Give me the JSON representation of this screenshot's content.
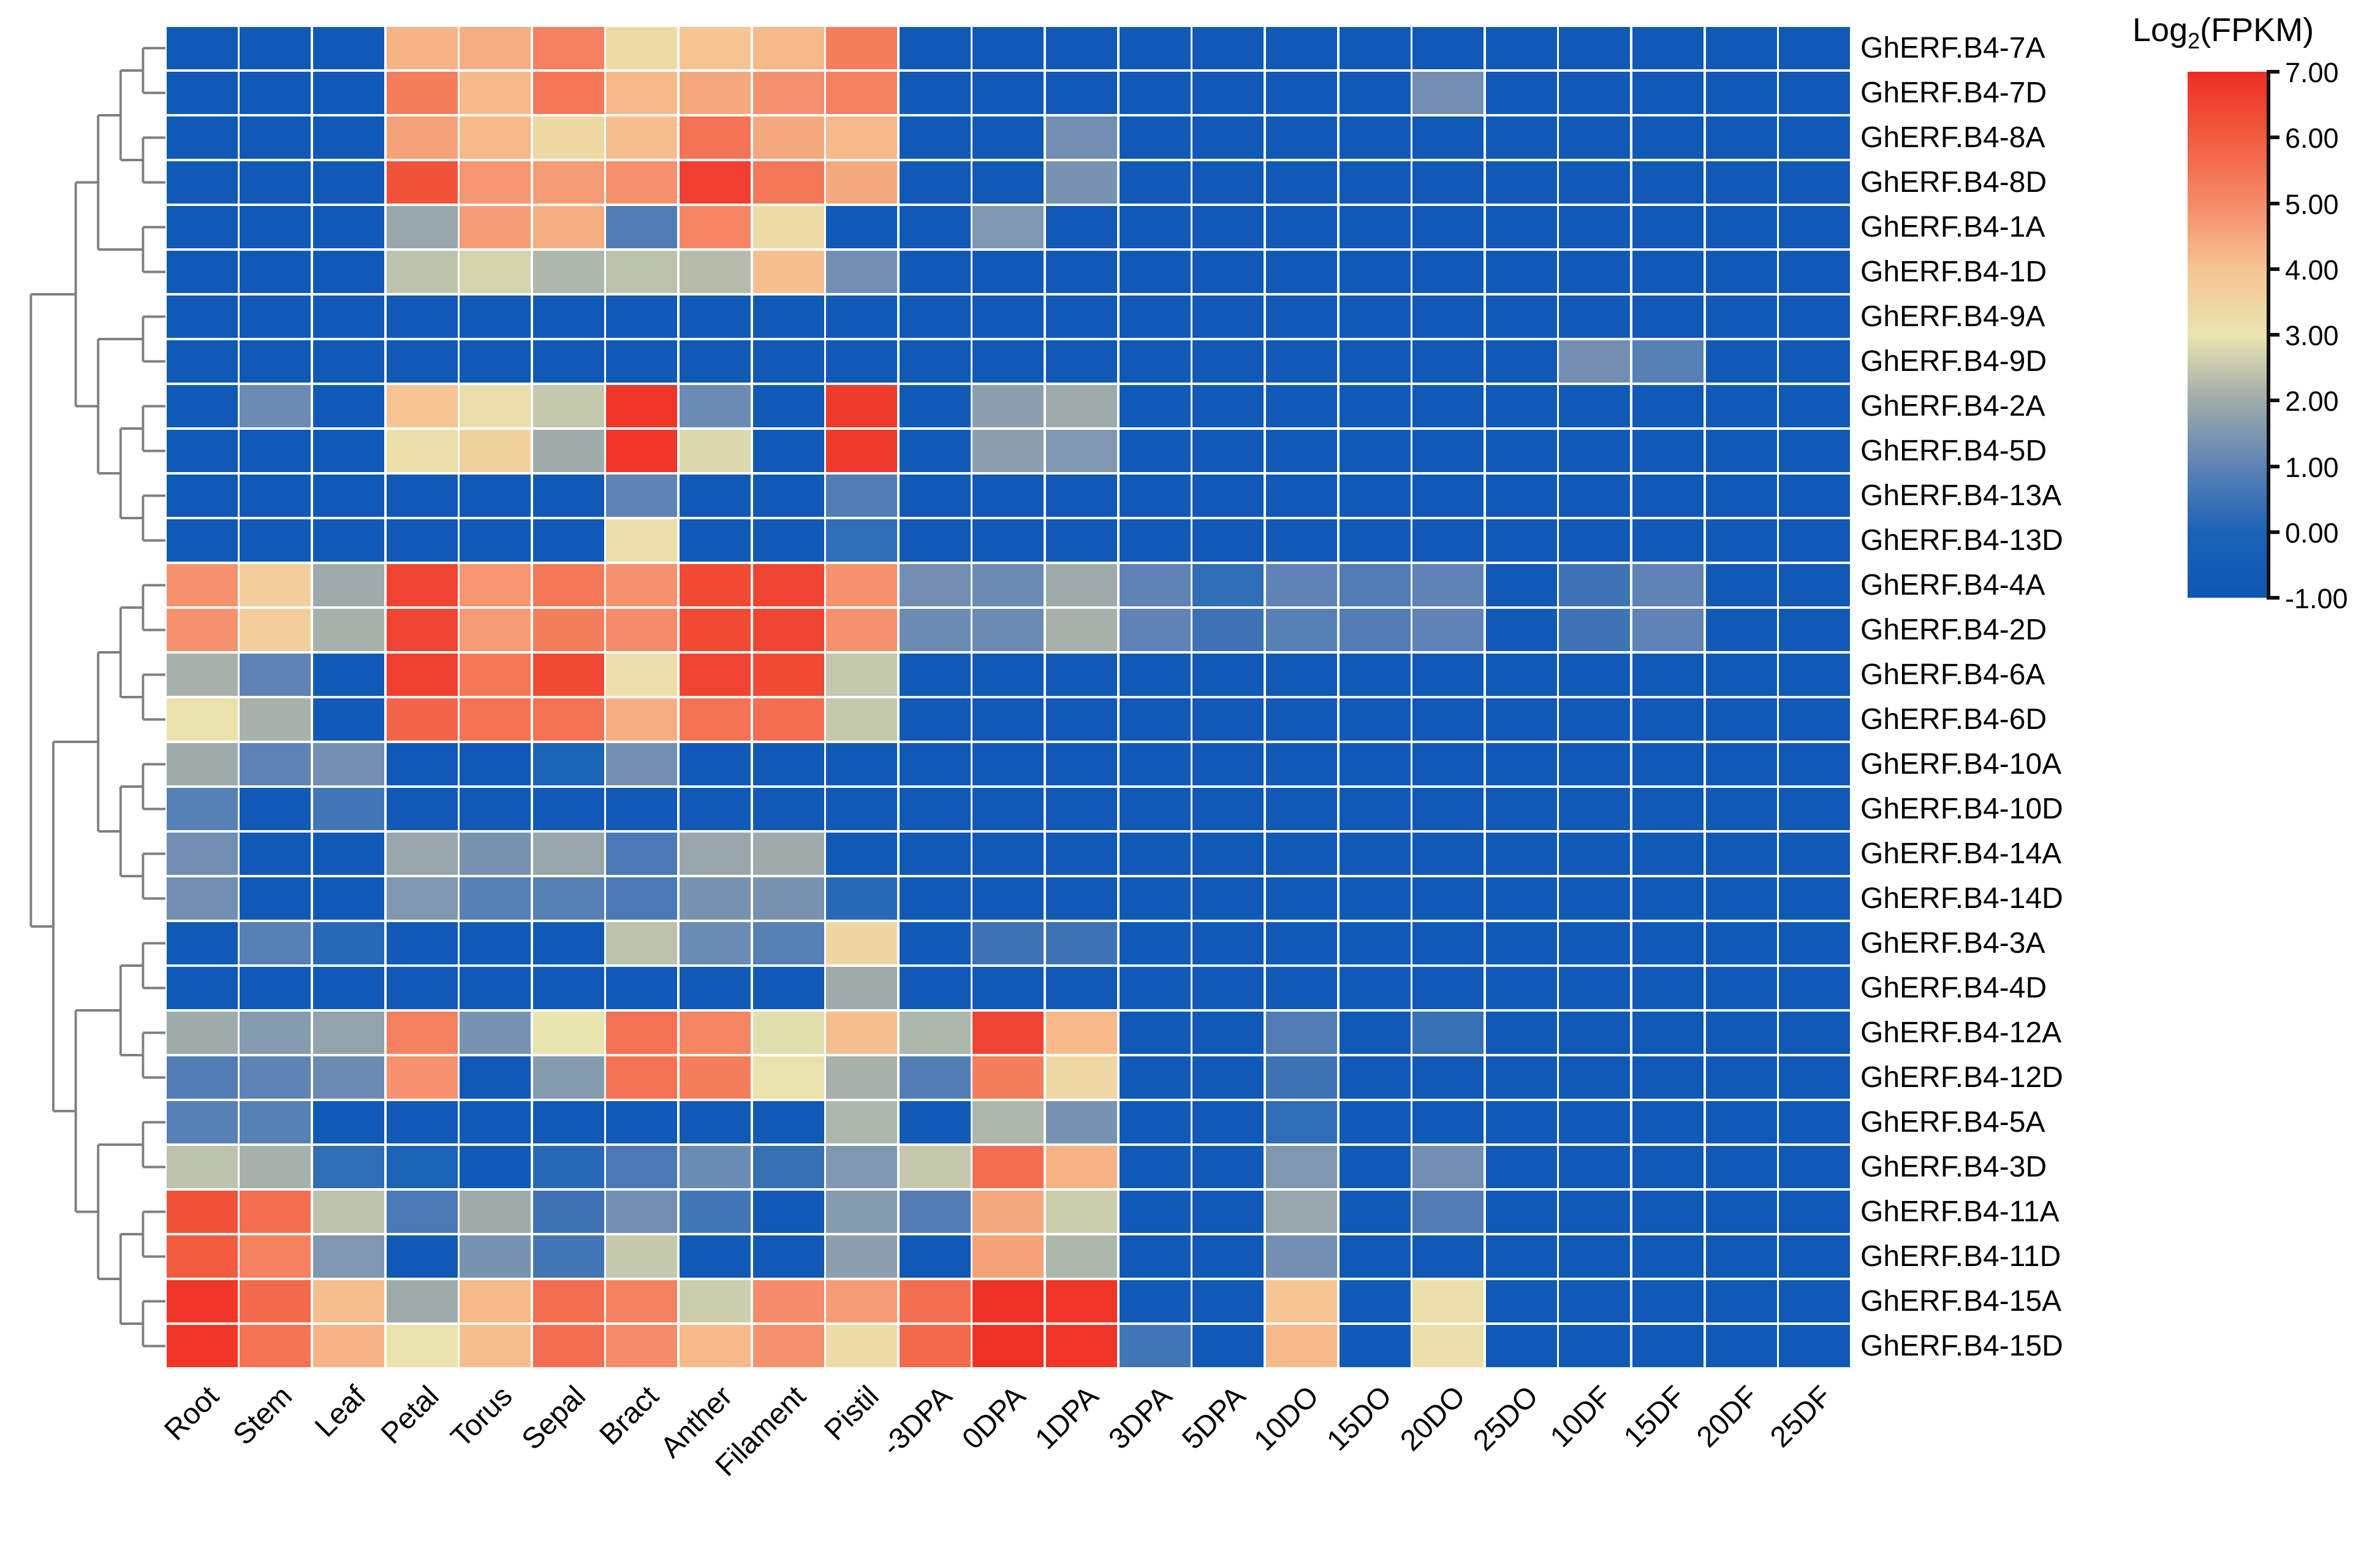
{
  "chart_data": {
    "type": "heatmap",
    "title": "",
    "legend": {
      "title_main": "Log",
      "title_sub": "2",
      "title_rest": "(FPKM)",
      "ticks": [
        "7.00",
        "6.00",
        "5.00",
        "4.00",
        "3.00",
        "2.00",
        "1.00",
        "0.00",
        "-1.00"
      ],
      "vmin": -1.0,
      "vmax": 7.0,
      "position": "right"
    },
    "colormap": {
      "stops": [
        {
          "v": -1,
          "c": "#0d57b5"
        },
        {
          "v": 0,
          "c": "#1b63b6"
        },
        {
          "v": 1,
          "c": "#5e83b4"
        },
        {
          "v": 2,
          "c": "#9fabaa"
        },
        {
          "v": 3,
          "c": "#e9e5ae"
        },
        {
          "v": 4,
          "c": "#f5c493"
        },
        {
          "v": 5,
          "c": "#f58b68"
        },
        {
          "v": 6,
          "c": "#f25b40"
        },
        {
          "v": 7,
          "c": "#ee2d23"
        }
      ]
    },
    "columns": [
      "Root",
      "Stem",
      "Leaf",
      "Petal",
      "Torus",
      "Sepal",
      "Bract",
      "Anther",
      "Filament",
      "Pistil",
      "-3DPA",
      "0DPA",
      "1DPA",
      "3DPA",
      "5DPA",
      "10DO",
      "15DO",
      "20DO",
      "25DO",
      "10DF",
      "15DF",
      "20DF",
      "25DF"
    ],
    "rows": [
      "GhERF.B4-7A",
      "GhERF.B4-7D",
      "GhERF.B4-8A",
      "GhERF.B4-8D",
      "GhERF.B4-1A",
      "GhERF.B4-1D",
      "GhERF.B4-9A",
      "GhERF.B4-9D",
      "GhERF.B4-2A",
      "GhERF.B4-5D",
      "GhERF.B4-13A",
      "GhERF.B4-13D",
      "GhERF.B4-4A",
      "GhERF.B4-2D",
      "GhERF.B4-6A",
      "GhERF.B4-6D",
      "GhERF.B4-10A",
      "GhERF.B4-10D",
      "GhERF.B4-14A",
      "GhERF.B4-14D",
      "GhERF.B4-3A",
      "GhERF.B4-4D",
      "GhERF.B4-12A",
      "GhERF.B4-12D",
      "GhERF.B4-5A",
      "GhERF.B4-3D",
      "GhERF.B4-11A",
      "GhERF.B4-11D",
      "GhERF.B4-15A",
      "GhERF.B4-15D"
    ],
    "values": [
      [
        -0.8,
        -0.8,
        -0.8,
        4.3,
        4.4,
        5.2,
        3.3,
        4.0,
        4.2,
        5.3,
        -0.8,
        -0.8,
        -0.8,
        -0.8,
        -0.8,
        -0.8,
        -0.8,
        -0.8,
        -0.8,
        -0.8,
        -0.8,
        -0.8,
        -0.8
      ],
      [
        -0.8,
        -0.8,
        -0.8,
        5.3,
        4.2,
        5.4,
        4.2,
        4.5,
        4.9,
        5.2,
        -0.8,
        -0.8,
        -0.8,
        -0.8,
        -0.8,
        -0.8,
        -0.8,
        1.3,
        -0.8,
        -0.8,
        -0.8,
        -0.8,
        -0.8
      ],
      [
        -0.8,
        -0.8,
        -0.8,
        4.6,
        4.2,
        3.4,
        4.1,
        5.5,
        4.5,
        4.2,
        -0.8,
        -0.8,
        1.3,
        -0.8,
        -0.8,
        -0.8,
        -0.8,
        -0.8,
        -0.8,
        -0.8,
        -0.8,
        -0.8,
        -0.8
      ],
      [
        -0.8,
        -0.8,
        -0.8,
        6.2,
        4.8,
        4.7,
        4.9,
        6.6,
        5.4,
        4.5,
        -0.8,
        -0.8,
        1.4,
        -0.8,
        -0.8,
        -0.8,
        -0.8,
        -0.8,
        -0.8,
        -0.8,
        -0.8,
        -0.8,
        -0.8
      ],
      [
        -0.8,
        -0.8,
        -0.8,
        1.9,
        4.7,
        4.4,
        0.8,
        5.1,
        3.3,
        -0.8,
        -0.8,
        1.5,
        -0.8,
        -0.8,
        -0.8,
        -0.8,
        -0.8,
        -0.8,
        -0.8,
        -0.8,
        -0.8,
        -0.8,
        -0.8
      ],
      [
        -0.8,
        -0.8,
        -0.8,
        2.4,
        2.7,
        2.2,
        2.4,
        2.3,
        4.1,
        1.3,
        -0.8,
        -0.8,
        -0.8,
        -0.8,
        -0.8,
        -0.8,
        -0.8,
        -0.8,
        -0.8,
        -0.8,
        -0.8,
        -0.8,
        -0.8
      ],
      [
        -0.8,
        -0.8,
        -0.8,
        -0.8,
        -0.8,
        -0.8,
        -0.8,
        -0.8,
        -0.8,
        -0.8,
        -0.8,
        -0.8,
        -0.8,
        -0.8,
        -0.8,
        -0.8,
        -0.8,
        -0.8,
        -0.8,
        -0.8,
        -0.8,
        -0.8,
        -0.8
      ],
      [
        -0.8,
        -0.8,
        -0.8,
        -0.8,
        -0.8,
        -0.8,
        -0.8,
        -0.8,
        -0.8,
        -0.8,
        -0.8,
        -0.8,
        -0.8,
        -0.8,
        -0.8,
        -0.8,
        -0.8,
        -0.8,
        -0.8,
        1.3,
        0.9,
        -0.8,
        -0.8
      ],
      [
        -0.8,
        1.2,
        -0.8,
        4.0,
        3.2,
        2.5,
        6.8,
        1.2,
        -0.8,
        6.7,
        -0.8,
        1.7,
        2.0,
        -0.8,
        -0.8,
        -0.8,
        -0.8,
        -0.8,
        -0.8,
        -0.8,
        -0.8,
        -0.8,
        -0.8
      ],
      [
        -0.8,
        -0.8,
        -0.8,
        3.2,
        3.6,
        2.0,
        6.8,
        2.8,
        -0.8,
        6.7,
        -0.8,
        1.7,
        1.5,
        -0.8,
        -0.8,
        -0.8,
        -0.8,
        -0.8,
        -0.8,
        -0.8,
        -0.8,
        -0.8,
        -0.8
      ],
      [
        -0.8,
        -0.8,
        -0.8,
        -0.8,
        -0.8,
        -0.8,
        1.0,
        -0.8,
        -0.8,
        0.8,
        -0.8,
        -0.8,
        -0.8,
        -0.8,
        -0.8,
        -0.8,
        -0.8,
        -0.8,
        -0.8,
        -0.8,
        -0.8,
        -0.8,
        -0.8
      ],
      [
        -0.8,
        -0.8,
        -0.8,
        -0.8,
        -0.8,
        -0.8,
        3.2,
        -0.8,
        -0.8,
        0.3,
        -0.8,
        -0.8,
        -0.8,
        -0.8,
        -0.8,
        -0.8,
        -0.8,
        -0.8,
        -0.8,
        -0.8,
        -0.8,
        -0.8,
        -0.8
      ],
      [
        4.9,
        3.7,
        2.0,
        6.5,
        4.8,
        5.4,
        4.9,
        6.4,
        6.5,
        4.9,
        1.3,
        1.2,
        2.0,
        1.0,
        0.3,
        1.0,
        0.8,
        1.0,
        -0.8,
        0.5,
        1.0,
        -0.8,
        -0.8
      ],
      [
        4.9,
        3.7,
        2.1,
        6.5,
        4.7,
        5.3,
        5.0,
        6.4,
        6.5,
        4.9,
        1.2,
        1.2,
        2.1,
        1.0,
        0.5,
        0.9,
        0.8,
        1.0,
        -0.8,
        0.5,
        1.0,
        -0.8,
        -0.8
      ],
      [
        2.1,
        1.0,
        -0.8,
        6.6,
        5.4,
        6.4,
        3.2,
        6.5,
        6.4,
        2.5,
        -0.8,
        -0.8,
        -0.8,
        -0.8,
        -0.8,
        -0.8,
        -0.8,
        -0.8,
        -0.8,
        -0.8,
        -0.8,
        -0.8,
        -0.8
      ],
      [
        3.1,
        2.1,
        -0.8,
        5.8,
        5.5,
        5.5,
        4.4,
        5.5,
        5.6,
        2.5,
        -0.8,
        -0.8,
        -0.8,
        -0.8,
        -0.8,
        -0.8,
        -0.8,
        -0.8,
        -0.8,
        -0.8,
        -0.8,
        -0.8,
        -0.8
      ],
      [
        2.0,
        1.0,
        1.3,
        -0.8,
        -0.8,
        0.0,
        1.3,
        -0.8,
        -0.8,
        -0.8,
        -0.8,
        -0.8,
        -0.8,
        -0.8,
        -0.8,
        -0.8,
        -0.8,
        -0.8,
        -0.8,
        -0.8,
        -0.8,
        -0.8,
        -0.8
      ],
      [
        0.9,
        -0.8,
        0.6,
        -0.8,
        -0.8,
        -0.8,
        -0.8,
        -0.8,
        -0.8,
        -0.8,
        -0.8,
        -0.8,
        -0.8,
        -0.8,
        -0.8,
        -0.8,
        -0.8,
        -0.8,
        -0.8,
        -0.8,
        -0.8,
        -0.8,
        -0.8
      ],
      [
        1.3,
        -0.8,
        -0.8,
        1.9,
        1.4,
        1.9,
        0.7,
        1.9,
        2.0,
        -0.8,
        -0.8,
        -0.8,
        -0.8,
        -0.8,
        -0.8,
        -0.8,
        -0.8,
        -0.8,
        -0.8,
        -0.8,
        -0.8,
        -0.8,
        -0.8
      ],
      [
        1.3,
        -0.8,
        -0.8,
        1.5,
        0.9,
        0.9,
        0.7,
        1.4,
        1.4,
        0.2,
        -0.8,
        -0.8,
        -0.8,
        -0.8,
        -0.8,
        -0.8,
        -0.8,
        -0.8,
        -0.8,
        -0.8,
        -0.8,
        -0.8,
        -0.8
      ],
      [
        -0.8,
        0.9,
        0.2,
        -0.8,
        -0.8,
        -0.8,
        2.4,
        1.2,
        0.9,
        3.5,
        -0.8,
        0.5,
        0.5,
        -0.8,
        -0.8,
        -0.8,
        -0.8,
        -0.8,
        -0.8,
        -0.8,
        -0.8,
        -0.8,
        -0.8
      ],
      [
        -0.8,
        -0.8,
        -0.8,
        -0.8,
        -0.8,
        -0.8,
        -0.8,
        -0.8,
        -0.8,
        2.0,
        -0.8,
        -0.8,
        -0.8,
        -0.8,
        -0.8,
        -0.8,
        -0.8,
        -0.8,
        -0.8,
        -0.8,
        -0.8,
        -0.8,
        -0.8
      ],
      [
        2.0,
        1.6,
        1.8,
        5.2,
        1.4,
        3.0,
        5.5,
        5.1,
        2.9,
        4.1,
        2.2,
        6.5,
        4.2,
        -0.8,
        -0.8,
        0.8,
        -0.8,
        0.4,
        -0.8,
        -0.8,
        -0.8,
        -0.8,
        -0.8
      ],
      [
        0.8,
        1.0,
        1.2,
        4.9,
        -0.8,
        1.6,
        5.5,
        5.3,
        3.1,
        2.1,
        0.8,
        5.3,
        3.4,
        -0.8,
        -0.8,
        0.5,
        -0.8,
        -0.8,
        -0.8,
        -0.8,
        -0.8,
        -0.8,
        -0.8
      ],
      [
        0.9,
        0.9,
        -0.8,
        -0.8,
        -0.8,
        -0.8,
        -0.8,
        -0.8,
        -0.8,
        2.2,
        -0.8,
        2.2,
        1.4,
        -0.8,
        -0.8,
        0.3,
        -0.8,
        -0.8,
        -0.8,
        -0.8,
        -0.8,
        -0.8,
        -0.8
      ],
      [
        2.4,
        2.1,
        0.3,
        0.0,
        -0.8,
        0.2,
        0.7,
        1.2,
        0.4,
        1.5,
        2.5,
        5.6,
        4.3,
        -0.8,
        -0.8,
        1.5,
        -0.8,
        1.3,
        -0.8,
        -0.8,
        -0.8,
        -0.8,
        -0.8
      ],
      [
        6.2,
        5.6,
        2.4,
        0.7,
        2.0,
        0.5,
        1.3,
        0.6,
        -0.8,
        1.6,
        0.8,
        4.5,
        2.6,
        -0.8,
        -0.8,
        1.9,
        -0.8,
        0.8,
        -0.8,
        -0.8,
        -0.8,
        -0.8,
        -0.8
      ],
      [
        6.0,
        5.2,
        1.5,
        -0.8,
        1.4,
        0.6,
        2.5,
        -0.8,
        -0.8,
        1.7,
        -0.8,
        4.6,
        2.2,
        -0.8,
        -0.8,
        1.3,
        -0.8,
        -0.8,
        -0.8,
        -0.8,
        -0.8,
        -0.8,
        -0.8
      ],
      [
        6.8,
        5.7,
        4.1,
        2.0,
        4.2,
        5.6,
        5.2,
        2.6,
        5.0,
        4.7,
        5.6,
        6.9,
        6.8,
        -0.8,
        -0.8,
        4.0,
        -0.8,
        3.2,
        -0.8,
        -0.8,
        -0.8,
        -0.8,
        -0.8
      ],
      [
        6.8,
        5.5,
        4.3,
        3.1,
        4.1,
        5.6,
        5.0,
        4.2,
        4.9,
        3.3,
        5.7,
        6.9,
        6.8,
        0.6,
        -0.8,
        4.2,
        -0.8,
        3.2,
        -0.8,
        -0.8,
        -0.8,
        -0.8,
        -0.8
      ]
    ],
    "dendrogram": {
      "side": "left",
      "tree": [
        [
          [
            [
              [
                0,
                1
              ],
              [
                2,
                3
              ]
            ],
            [
              4,
              5
            ]
          ],
          [
            [
              6,
              7
            ],
            [
              [
                8,
                9
              ],
              [
                10,
                11
              ]
            ]
          ]
        ],
        [
          [
            [
              [
                12,
                13
              ],
              [
                14,
                15
              ]
            ],
            [
              [
                16,
                17
              ],
              [
                18,
                19
              ]
            ]
          ],
          [
            [
              [
                20,
                21
              ],
              [
                22,
                23
              ]
            ],
            [
              [
                24,
                25
              ],
              [
                [
                  26,
                  27
                ],
                [
                  28,
                  29
                ]
              ]
            ]
          ]
        ]
      ]
    },
    "grid": true,
    "grid_color": "#ffffff",
    "dendrogram_color": "#7f7f7f"
  }
}
